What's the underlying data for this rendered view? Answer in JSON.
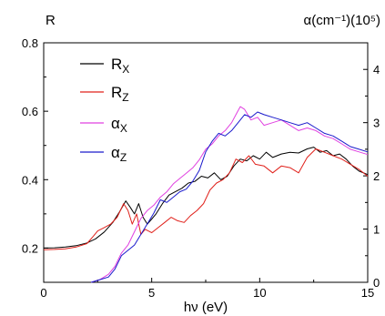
{
  "chart_data": {
    "type": "line",
    "title": "",
    "xlabel": "hν (eV)",
    "ylabel_left": "R",
    "ylabel_right": "α(cm⁻¹)(10⁵)",
    "xlim": [
      0,
      15
    ],
    "ylim_left": [
      0.1,
      0.8
    ],
    "ylim_right": [
      0,
      4.5
    ],
    "x_ticks": [
      0,
      5,
      10,
      15
    ],
    "y_ticks_left": [
      0.2,
      0.4,
      0.6,
      0.8
    ],
    "y_ticks_right": [
      0,
      1,
      2,
      3,
      4
    ],
    "grid": false,
    "legend_position": "top-left",
    "series": [
      {
        "name": "R_x",
        "axis": "left",
        "color": "#000000",
        "x": [
          0,
          0.5,
          1.0,
          1.5,
          2.0,
          2.4,
          2.8,
          3.2,
          3.5,
          3.8,
          4.0,
          4.2,
          4.4,
          4.6,
          4.8,
          5.0,
          5.2,
          5.5,
          5.8,
          6.1,
          6.4,
          6.7,
          7.0,
          7.3,
          7.6,
          7.9,
          8.2,
          8.5,
          8.8,
          9.1,
          9.4,
          9.7,
          10.0,
          10.3,
          10.6,
          11.0,
          11.4,
          11.8,
          12.2,
          12.5,
          12.8,
          13.1,
          13.4,
          13.7,
          14.0,
          14.3,
          14.6,
          15.0
        ],
        "y": [
          0.2,
          0.201,
          0.203,
          0.207,
          0.215,
          0.227,
          0.247,
          0.275,
          0.305,
          0.338,
          0.32,
          0.3,
          0.33,
          0.29,
          0.27,
          0.285,
          0.3,
          0.33,
          0.355,
          0.365,
          0.375,
          0.39,
          0.395,
          0.41,
          0.405,
          0.42,
          0.4,
          0.41,
          0.44,
          0.46,
          0.455,
          0.47,
          0.46,
          0.48,
          0.465,
          0.475,
          0.48,
          0.478,
          0.49,
          0.495,
          0.48,
          0.485,
          0.47,
          0.475,
          0.46,
          0.44,
          0.425,
          0.415
        ]
      },
      {
        "name": "R_z",
        "axis": "left",
        "color": "#e0201a",
        "x": [
          0,
          0.5,
          1.0,
          1.5,
          2.0,
          2.3,
          2.5,
          2.8,
          3.1,
          3.4,
          3.7,
          3.9,
          4.1,
          4.3,
          4.5,
          4.7,
          5.0,
          5.3,
          5.6,
          5.9,
          6.2,
          6.5,
          6.8,
          7.1,
          7.4,
          7.7,
          8.0,
          8.3,
          8.6,
          8.9,
          9.2,
          9.5,
          9.8,
          10.2,
          10.6,
          11.0,
          11.4,
          11.8,
          12.2,
          12.6,
          13.0,
          13.4,
          13.8,
          14.2,
          14.6,
          15.0
        ],
        "y": [
          0.195,
          0.196,
          0.198,
          0.203,
          0.213,
          0.235,
          0.25,
          0.26,
          0.27,
          0.29,
          0.33,
          0.31,
          0.27,
          0.3,
          0.24,
          0.255,
          0.245,
          0.26,
          0.275,
          0.29,
          0.28,
          0.275,
          0.295,
          0.31,
          0.33,
          0.37,
          0.39,
          0.4,
          0.42,
          0.46,
          0.45,
          0.47,
          0.445,
          0.44,
          0.42,
          0.44,
          0.435,
          0.42,
          0.465,
          0.49,
          0.48,
          0.47,
          0.46,
          0.445,
          0.43,
          0.41
        ]
      },
      {
        "name": "α_x",
        "axis": "right",
        "color": "#e040e0",
        "x": [
          2.2,
          2.6,
          3.0,
          3.3,
          3.6,
          3.9,
          4.2,
          4.5,
          4.8,
          5.1,
          5.4,
          5.7,
          6.0,
          6.3,
          6.6,
          6.9,
          7.2,
          7.5,
          7.8,
          8.1,
          8.4,
          8.7,
          8.9,
          9.1,
          9.3,
          9.6,
          9.9,
          10.2,
          10.6,
          11.0,
          11.4,
          11.8,
          12.2,
          12.6,
          13.0,
          13.4,
          13.8,
          14.2,
          14.6,
          15.0
        ],
        "y": [
          0.0,
          0.05,
          0.15,
          0.3,
          0.55,
          0.7,
          0.95,
          1.2,
          1.35,
          1.45,
          1.6,
          1.7,
          1.85,
          1.95,
          2.05,
          2.15,
          2.3,
          2.5,
          2.6,
          2.75,
          2.85,
          3.0,
          3.15,
          3.3,
          3.25,
          3.05,
          3.1,
          2.95,
          3.0,
          3.05,
          2.95,
          2.85,
          2.9,
          2.85,
          2.75,
          2.7,
          2.6,
          2.5,
          2.45,
          2.4
        ]
      },
      {
        "name": "α_z",
        "axis": "right",
        "color": "#1a1acc",
        "x": [
          2.2,
          2.6,
          3.0,
          3.3,
          3.6,
          3.9,
          4.2,
          4.5,
          4.8,
          5.1,
          5.4,
          5.7,
          6.0,
          6.3,
          6.6,
          6.9,
          7.2,
          7.5,
          7.8,
          8.1,
          8.4,
          8.7,
          9.0,
          9.3,
          9.6,
          9.9,
          10.2,
          10.6,
          11.0,
          11.4,
          11.8,
          12.2,
          12.6,
          13.0,
          13.4,
          13.8,
          14.2,
          14.6,
          15.0
        ],
        "y": [
          0.0,
          0.05,
          0.1,
          0.25,
          0.5,
          0.6,
          0.7,
          0.9,
          1.1,
          1.3,
          1.55,
          1.5,
          1.6,
          1.7,
          1.75,
          1.9,
          2.1,
          2.45,
          2.65,
          2.8,
          2.75,
          2.85,
          3.0,
          3.15,
          3.1,
          3.2,
          3.15,
          3.1,
          3.05,
          3.0,
          2.95,
          3.0,
          2.9,
          2.8,
          2.75,
          2.65,
          2.55,
          2.5,
          2.45
        ]
      }
    ]
  },
  "legend": [
    {
      "base": "R",
      "sub": "X",
      "color": "#000000"
    },
    {
      "base": "R",
      "sub": "Z",
      "color": "#e0201a"
    },
    {
      "base": "α",
      "sub": "X",
      "color": "#e040e0"
    },
    {
      "base": "α",
      "sub": "Z",
      "color": "#1a1acc"
    }
  ]
}
